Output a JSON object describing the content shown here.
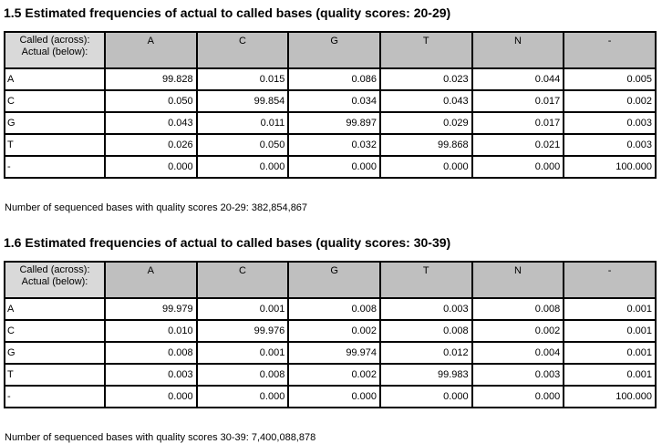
{
  "colors": {
    "page_bg": "#ffffff",
    "text": "#000000",
    "border": "#000000",
    "header_bg": "#bfbfbf",
    "corner_bg": "#d9d9d9"
  },
  "sections": [
    {
      "title": "1.5 Estimated frequencies of actual to called bases (quality scores: 20-29)",
      "table": {
        "corner": [
          "Called (across):",
          "Actual (below):"
        ],
        "columns": [
          "A",
          "C",
          "G",
          "T",
          "N",
          "-"
        ],
        "rows": [
          {
            "label": "A",
            "values": [
              "99.828",
              "0.015",
              "0.086",
              "0.023",
              "0.044",
              "0.005"
            ]
          },
          {
            "label": "C",
            "values": [
              "0.050",
              "99.854",
              "0.034",
              "0.043",
              "0.017",
              "0.002"
            ]
          },
          {
            "label": "G",
            "values": [
              "0.043",
              "0.011",
              "99.897",
              "0.029",
              "0.017",
              "0.003"
            ]
          },
          {
            "label": "T",
            "values": [
              "0.026",
              "0.050",
              "0.032",
              "99.868",
              "0.021",
              "0.003"
            ]
          },
          {
            "label": "-",
            "values": [
              "0.000",
              "0.000",
              "0.000",
              "0.000",
              "0.000",
              "100.000"
            ]
          }
        ]
      },
      "note": "Number of sequenced bases with quality scores 20-29: 382,854,867"
    },
    {
      "title": "1.6 Estimated frequencies of actual to called bases (quality scores: 30-39)",
      "table": {
        "corner": [
          "Called (across):",
          "Actual (below):"
        ],
        "columns": [
          "A",
          "C",
          "G",
          "T",
          "N",
          "-"
        ],
        "rows": [
          {
            "label": "A",
            "values": [
              "99.979",
              "0.001",
              "0.008",
              "0.003",
              "0.008",
              "0.001"
            ]
          },
          {
            "label": "C",
            "values": [
              "0.010",
              "99.976",
              "0.002",
              "0.008",
              "0.002",
              "0.001"
            ]
          },
          {
            "label": "G",
            "values": [
              "0.008",
              "0.001",
              "99.974",
              "0.012",
              "0.004",
              "0.001"
            ]
          },
          {
            "label": "T",
            "values": [
              "0.003",
              "0.008",
              "0.002",
              "99.983",
              "0.003",
              "0.001"
            ]
          },
          {
            "label": "-",
            "values": [
              "0.000",
              "0.000",
              "0.000",
              "0.000",
              "0.000",
              "100.000"
            ]
          }
        ]
      },
      "note": "Number of sequenced bases with quality scores 30-39: 7,400,088,878"
    }
  ]
}
